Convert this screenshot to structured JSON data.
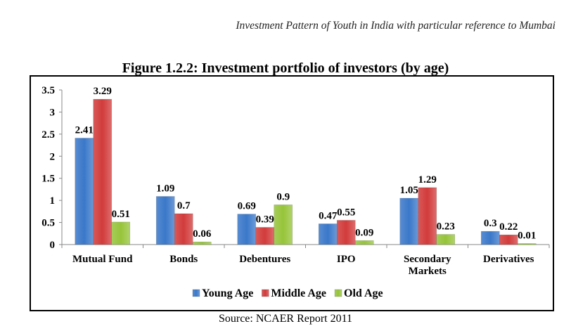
{
  "header": {
    "running_title": "Investment Pattern of Youth in India with particular reference to Mumbai"
  },
  "source": "Source: NCAER Report 2011",
  "chart_data": {
    "type": "bar",
    "title": "Figure 1.2.2: Investment portfolio of investors (by age)",
    "xlabel": "",
    "ylabel": "",
    "ylim": [
      0,
      3.5
    ],
    "yticks": [
      0,
      0.5,
      1,
      1.5,
      2,
      2.5,
      3,
      3.5
    ],
    "ytick_labels": [
      "0",
      "0.5",
      "1",
      "1.5",
      "2",
      "2.5",
      "3",
      "3.5"
    ],
    "grid": false,
    "legend_position": "bottom",
    "categories": [
      "Mutual Fund",
      "Bonds",
      "Debentures",
      "IPO",
      "Secondary Markets",
      "Derivatives"
    ],
    "category_label_lines": [
      [
        "Mutual Fund"
      ],
      [
        "Bonds"
      ],
      [
        "Debentures"
      ],
      [
        "IPO"
      ],
      [
        "Secondary",
        "Markets"
      ],
      [
        "Derivatives"
      ]
    ],
    "series": [
      {
        "name": "Young Age",
        "color": "#3a78c9",
        "values": [
          2.41,
          1.09,
          0.69,
          0.47,
          1.05,
          0.3
        ],
        "labels": [
          "2.41",
          "1.09",
          "0.69",
          "0.47",
          "1.05",
          "0.3"
        ]
      },
      {
        "name": "Middle Age",
        "color": "#d23b3b",
        "values": [
          3.29,
          0.7,
          0.39,
          0.55,
          1.29,
          0.22
        ],
        "labels": [
          "3.29",
          "0.7",
          "0.39",
          "0.55",
          "1.29",
          "0.22"
        ]
      },
      {
        "name": "Old Age",
        "color": "#96c43a",
        "values": [
          0.51,
          0.06,
          0.9,
          0.09,
          0.23,
          0.01
        ],
        "labels": [
          "0.51",
          "0.06",
          "0.9",
          "0.09",
          "0.23",
          "0.01"
        ]
      }
    ]
  }
}
